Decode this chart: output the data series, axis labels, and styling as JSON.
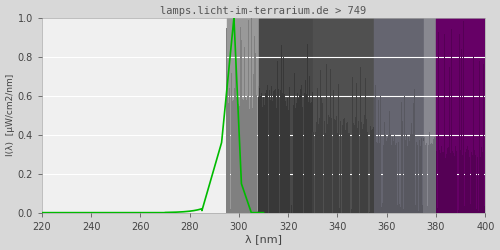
{
  "title": "lamps.licht-im-terrarium.de > 749",
  "xlabel": "λ [nm]",
  "ylabel": "I(λ)  [μW/cm2/nm]",
  "xlim": [
    220,
    400
  ],
  "ylim": [
    0,
    1.0
  ],
  "xticks": [
    220,
    240,
    260,
    280,
    300,
    320,
    340,
    360,
    380,
    400
  ],
  "yticks": [
    0.0,
    0.2,
    0.4,
    0.6,
    0.8,
    1.0
  ],
  "fig_bg_color": "#d8d8d8",
  "plot_bg_color": "#f0f0f0",
  "grid_color": "#ffffff",
  "title_color": "#555555",
  "axis_label_color": "#444444",
  "tick_color": "#444444",
  "green_line_color": "#00BB00",
  "band_uvb_near": "#606060",
  "band_uva1": "#484848",
  "band_uva2a": "#585858",
  "band_uva2b": "#707080",
  "band_vis": "#660066",
  "spike_uvb": "#1a1a1a",
  "spike_uva1": "#303030",
  "spike_uva2": "#555560",
  "spike_vis": "#660066"
}
